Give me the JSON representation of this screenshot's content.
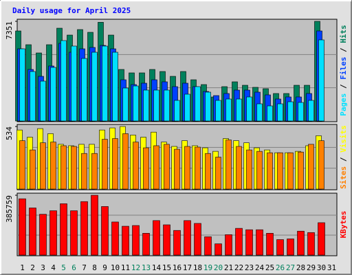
{
  "chart_data": [
    {
      "type": "bar",
      "title": "Daily usage for April 2025",
      "ylim": [
        0,
        7351
      ],
      "yticks": [
        7351
      ],
      "series": [
        {
          "name": "Hits",
          "color": "#00805c",
          "values": [
            6641,
            5627,
            5019,
            5627,
            6844,
            6337,
            6743,
            6540,
            7280,
            6337,
            3802,
            3549,
            3549,
            3802,
            3650,
            3295,
            3650,
            3042,
            2687,
            1774,
            2535,
            2890,
            2636,
            2484,
            2383,
            2028,
            2028,
            2636,
            2636,
            7351,
            null
          ]
        },
        {
          "name": "Files",
          "color": "#0040ff",
          "values": [
            5323,
            3802,
            3295,
            4056,
            5729,
            5070,
            5323,
            5425,
            5577,
            5323,
            3042,
            2687,
            2788,
            3042,
            2890,
            2535,
            2788,
            2535,
            2180,
            1876,
            2028,
            2281,
            2281,
            2129,
            1926,
            1622,
            1774,
            1774,
            2028,
            6641,
            null
          ]
        },
        {
          "name": "Pages",
          "color": "#00e0ff",
          "values": [
            5323,
            3650,
            2940,
            3954,
            5931,
            5526,
            4613,
            5070,
            5526,
            5070,
            2433,
            2585,
            2281,
            2281,
            2281,
            1521,
            1977,
            2535,
            2129,
            1521,
            1622,
            1622,
            1774,
            1267,
            1115,
            1267,
            1419,
            1369,
            1521,
            5982,
            null
          ]
        }
      ]
    },
    {
      "type": "bar",
      "ylim": [
        0,
        534
      ],
      "yticks": [
        534
      ],
      "series": [
        {
          "name": "Visits",
          "color": "#ffff00",
          "values": [
            504,
            443,
            516,
            473,
            382,
            370,
            382,
            382,
            504,
            522,
            534,
            461,
            443,
            486,
            401,
            364,
            413,
            370,
            352,
            322,
            431,
            413,
            395,
            352,
            334,
            310,
            310,
            322,
            370,
            455,
            null
          ]
        },
        {
          "name": "Sites",
          "color": "#ff8000",
          "values": [
            413,
            334,
            395,
            401,
            370,
            364,
            304,
            304,
            425,
            431,
            473,
            401,
            352,
            370,
            382,
            340,
            364,
            358,
            304,
            273,
            419,
            364,
            334,
            322,
            310,
            310,
            310,
            316,
            382,
            413,
            null
          ]
        }
      ]
    },
    {
      "type": "bar",
      "ylim": [
        0,
        385759
      ],
      "yticks": [
        385759
      ],
      "categories": [
        "1",
        "2",
        "3",
        "4",
        "5",
        "6",
        "7",
        "8",
        "9",
        "10",
        "11",
        "12",
        "13",
        "14",
        "15",
        "16",
        "17",
        "18",
        "19",
        "20",
        "21",
        "22",
        "23",
        "24",
        "25",
        "26",
        "27",
        "28",
        "29",
        "30",
        "31"
      ],
      "category_colors": [
        "#000000",
        "#000000",
        "#000000",
        "#000000",
        "#00805c",
        "#00805c",
        "#000000",
        "#000000",
        "#000000",
        "#000000",
        "#000000",
        "#00805c",
        "#00805c",
        "#000000",
        "#000000",
        "#000000",
        "#000000",
        "#000000",
        "#00805c",
        "#00805c",
        "#000000",
        "#000000",
        "#000000",
        "#000000",
        "#000000",
        "#00805c",
        "#00805c",
        "#000000",
        "#000000",
        "#000000",
        "#000000"
      ],
      "series": [
        {
          "name": "KBytes",
          "color": "#ff0000",
          "values": [
            363040,
            304046,
            263204,
            285894,
            331274,
            285894,
            344888,
            385759,
            313122,
            213286,
            186058,
            190596,
            140678,
            222362,
            195134,
            158830,
            222362,
            204210,
            117988,
            72608,
            131602,
            172444,
            163368,
            163368,
            140678,
            99836,
            104374,
            154292,
            145216,
            208748,
            null
          ]
        }
      ]
    }
  ]
}
